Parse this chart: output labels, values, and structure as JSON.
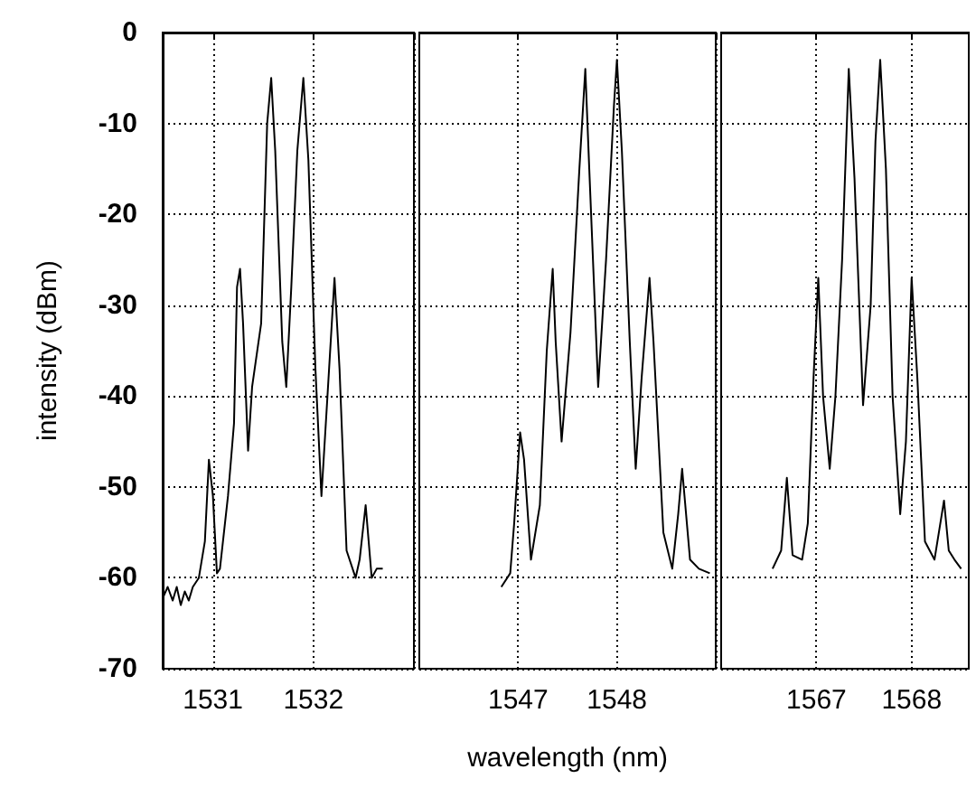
{
  "chart_data": [
    {
      "type": "line",
      "ylabel": "intensity (dBm)",
      "color": "#000000",
      "grid": true,
      "marker": "none",
      "line_style": "solid",
      "x": [
        1530.51,
        1530.55,
        1530.6,
        1530.64,
        1530.68,
        1530.72,
        1530.76,
        1530.8,
        1530.86,
        1530.92,
        1530.96,
        1531.0,
        1531.04,
        1531.07,
        1531.15,
        1531.21,
        1531.24,
        1531.27,
        1531.3,
        1531.35,
        1531.39,
        1531.48,
        1531.54,
        1531.58,
        1531.62,
        1531.69,
        1531.73,
        1531.78,
        1531.84,
        1531.9,
        1531.95,
        1532.02,
        1532.08,
        1532.14,
        1532.21,
        1532.26,
        1532.33,
        1532.42,
        1532.46,
        1532.52,
        1532.55,
        1532.58,
        1532.63,
        1532.69
      ],
      "values": [
        -62,
        -61,
        -62.5,
        -61,
        -63,
        -61.5,
        -62.5,
        -61,
        -60,
        -56,
        -47,
        -51,
        -59.5,
        -59,
        -51,
        -43,
        -28,
        -26,
        -32,
        -46,
        -39,
        -32,
        -10,
        -5,
        -13,
        -34,
        -39,
        -28,
        -13,
        -5,
        -14,
        -37,
        -51,
        -40,
        -27,
        -37,
        -57,
        -60,
        -58,
        -52,
        -56,
        -60,
        -59,
        -59
      ],
      "xlim": [
        1530.5,
        1533
      ],
      "xticks": [
        1531,
        1532,
        {
          "value": 1533,
          "label": null
        }
      ],
      "ylim": [
        -70,
        0
      ],
      "yticks": [
        -70,
        -60,
        -50,
        -40,
        -30,
        -20,
        -10,
        0
      ]
    },
    {
      "type": "line",
      "xlabel": "wavelength (nm)",
      "color": "#000000",
      "grid": true,
      "marker": "none",
      "line_style": "solid",
      "tick_labels": "x",
      "x": [
        1546.83,
        1546.92,
        1546.96,
        1547.02,
        1547.06,
        1547.13,
        1547.22,
        1547.29,
        1547.35,
        1547.38,
        1547.44,
        1547.53,
        1547.62,
        1547.68,
        1547.72,
        1547.81,
        1547.89,
        1547.97,
        1548.0,
        1548.05,
        1548.13,
        1548.19,
        1548.25,
        1548.33,
        1548.37,
        1548.47,
        1548.56,
        1548.62,
        1548.66,
        1548.74,
        1548.83,
        1548.94
      ],
      "values": [
        -61,
        -59.5,
        -54,
        -44,
        -47,
        -58,
        -52,
        -35,
        -26,
        -34,
        -45,
        -33,
        -15,
        -4,
        -15,
        -39,
        -25,
        -8,
        -3,
        -13,
        -34,
        -48,
        -38,
        -27,
        -34,
        -55,
        -59,
        -53,
        -48,
        -58,
        -59,
        -59.5
      ],
      "xlim": [
        1546,
        1549
      ],
      "xticks": [
        1547,
        1548,
        {
          "value": 1549,
          "label": null
        }
      ],
      "ylim": [
        -70,
        0
      ],
      "yticks": [
        -70,
        -60,
        -50,
        -40,
        -30,
        -20,
        -10,
        0
      ]
    },
    {
      "type": "line",
      "color": "#000000",
      "grid": true,
      "marker": "none",
      "line_style": "solid",
      "tick_labels": "x",
      "x": [
        1566.54,
        1566.63,
        1566.69,
        1566.75,
        1566.85,
        1566.91,
        1566.97,
        1567.02,
        1567.07,
        1567.14,
        1567.2,
        1567.27,
        1567.34,
        1567.4,
        1567.49,
        1567.57,
        1567.62,
        1567.67,
        1567.73,
        1567.8,
        1567.88,
        1567.94,
        1568.0,
        1568.06,
        1568.14,
        1568.24,
        1568.34,
        1568.39,
        1568.45,
        1568.52
      ],
      "values": [
        -59,
        -57,
        -49,
        -57.5,
        -58,
        -54,
        -38,
        -27,
        -40,
        -48,
        -40,
        -25,
        -4,
        -16,
        -41,
        -30,
        -12,
        -3,
        -15,
        -40,
        -53,
        -45,
        -27,
        -38,
        -56,
        -58,
        -51.5,
        -57,
        -58,
        -59
      ],
      "xlim": [
        1566,
        1568.6
      ],
      "xticks": [
        1567,
        1568
      ],
      "ylim": [
        -70,
        0
      ],
      "yticks": [
        -70,
        -60,
        -50,
        -40,
        -30,
        -20,
        -10,
        0
      ]
    }
  ]
}
